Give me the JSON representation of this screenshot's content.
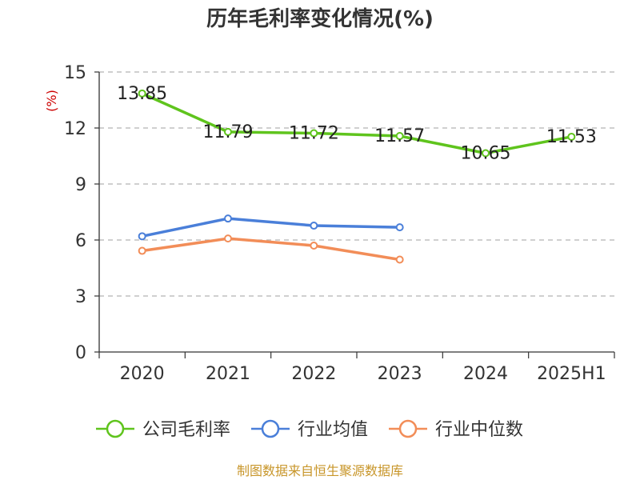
{
  "chart_data": {
    "type": "line",
    "title": "历年毛利率变化情况(%)",
    "ylabel": "(%)",
    "categories": [
      "2020",
      "2021",
      "2022",
      "2023",
      "2024",
      "2025H1"
    ],
    "ylim": [
      0,
      15
    ],
    "yticks": [
      0,
      3,
      6,
      9,
      12,
      15
    ],
    "grid": true,
    "legend_position": "bottom",
    "series": [
      {
        "name": "公司毛利率",
        "color": "#5fc41d",
        "values": [
          13.85,
          11.79,
          11.72,
          11.57,
          10.65,
          11.53
        ],
        "show_labels": true
      },
      {
        "name": "行业均值",
        "color": "#4a7fd9",
        "values": [
          6.2,
          7.15,
          6.77,
          6.68,
          null,
          null
        ],
        "show_labels": false
      },
      {
        "name": "行业中位数",
        "color": "#f28d58",
        "values": [
          5.42,
          6.08,
          5.7,
          4.95,
          null,
          null
        ],
        "show_labels": false
      }
    ],
    "source": "制图数据来自恒生聚源数据库"
  }
}
